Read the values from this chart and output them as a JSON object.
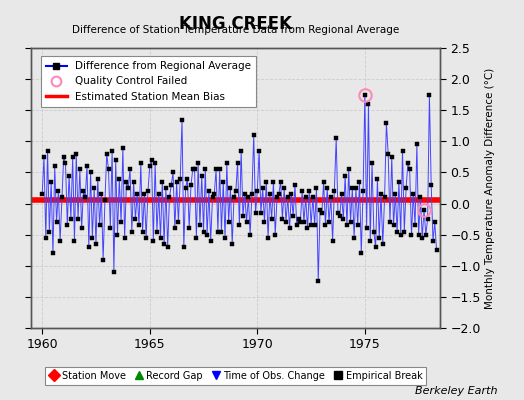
{
  "title": "KING CREEK",
  "subtitle": "Difference of Station Temperature Data from Regional Average",
  "ylabel": "Monthly Temperature Anomaly Difference (°C)",
  "credit": "Berkeley Earth",
  "xlim": [
    1959.5,
    1978.5
  ],
  "ylim": [
    -2.0,
    2.5
  ],
  "yticks": [
    -2.0,
    -1.5,
    -1.0,
    -0.5,
    0.0,
    0.5,
    1.0,
    1.5,
    2.0,
    2.5
  ],
  "xticks": [
    1960,
    1965,
    1970,
    1975
  ],
  "background_color": "#e8e8e8",
  "fig_background": "#e8e8e8",
  "line_color": "#4444ff",
  "line_color_light": "#aaaaff",
  "marker_color": "#000000",
  "bias_color": "#ff0000",
  "qc_color": "#ff88bb",
  "legend_line_color": "#0000ff",
  "legend_items": [
    {
      "label": "Difference from Regional Average"
    },
    {
      "label": "Quality Control Failed"
    },
    {
      "label": "Estimated Station Mean Bias"
    }
  ],
  "bottom_legend": [
    {
      "label": "Station Move",
      "color": "#ff0000",
      "marker": "D"
    },
    {
      "label": "Record Gap",
      "color": "#008800",
      "marker": "^"
    },
    {
      "label": "Time of Obs. Change",
      "color": "#0000ff",
      "marker": "v"
    },
    {
      "label": "Empirical Break",
      "color": "#000000",
      "marker": "s"
    }
  ],
  "data_x": [
    1960.0,
    1960.083,
    1960.167,
    1960.25,
    1960.333,
    1960.417,
    1960.5,
    1960.583,
    1960.667,
    1960.75,
    1960.833,
    1960.917,
    1961.0,
    1961.083,
    1961.167,
    1961.25,
    1961.333,
    1961.417,
    1961.5,
    1961.583,
    1961.667,
    1961.75,
    1961.833,
    1961.917,
    1962.0,
    1962.083,
    1962.167,
    1962.25,
    1962.333,
    1962.417,
    1962.5,
    1962.583,
    1962.667,
    1962.75,
    1962.833,
    1962.917,
    1963.0,
    1963.083,
    1963.167,
    1963.25,
    1963.333,
    1963.417,
    1963.5,
    1963.583,
    1963.667,
    1963.75,
    1963.833,
    1963.917,
    1964.0,
    1964.083,
    1964.167,
    1964.25,
    1964.333,
    1964.417,
    1964.5,
    1964.583,
    1964.667,
    1964.75,
    1964.833,
    1964.917,
    1965.0,
    1965.083,
    1965.167,
    1965.25,
    1965.333,
    1965.417,
    1965.5,
    1965.583,
    1965.667,
    1965.75,
    1965.833,
    1965.917,
    1966.0,
    1966.083,
    1966.167,
    1966.25,
    1966.333,
    1966.417,
    1966.5,
    1966.583,
    1966.667,
    1966.75,
    1966.833,
    1966.917,
    1967.0,
    1967.083,
    1967.167,
    1967.25,
    1967.333,
    1967.417,
    1967.5,
    1967.583,
    1967.667,
    1967.75,
    1967.833,
    1967.917,
    1968.0,
    1968.083,
    1968.167,
    1968.25,
    1968.333,
    1968.417,
    1968.5,
    1968.583,
    1968.667,
    1968.75,
    1968.833,
    1968.917,
    1969.0,
    1969.083,
    1969.167,
    1969.25,
    1969.333,
    1969.417,
    1969.5,
    1969.583,
    1969.667,
    1969.75,
    1969.833,
    1969.917,
    1970.0,
    1970.083,
    1970.167,
    1970.25,
    1970.333,
    1970.417,
    1970.5,
    1970.583,
    1970.667,
    1970.75,
    1970.833,
    1970.917,
    1971.0,
    1971.083,
    1971.167,
    1971.25,
    1971.333,
    1971.417,
    1971.5,
    1971.583,
    1971.667,
    1971.75,
    1971.833,
    1971.917,
    1972.0,
    1972.083,
    1972.167,
    1972.25,
    1972.333,
    1972.417,
    1972.5,
    1972.583,
    1972.667,
    1972.75,
    1972.833,
    1972.917,
    1973.0,
    1973.083,
    1973.167,
    1973.25,
    1973.333,
    1973.417,
    1973.5,
    1973.583,
    1973.667,
    1973.75,
    1973.833,
    1973.917,
    1974.0,
    1974.083,
    1974.167,
    1974.25,
    1974.333,
    1974.417,
    1974.5,
    1974.583,
    1974.667,
    1974.75,
    1974.833,
    1974.917,
    1975.0,
    1975.083,
    1975.167,
    1975.25,
    1975.333,
    1975.417,
    1975.5,
    1975.583,
    1975.667,
    1975.75,
    1975.833,
    1975.917,
    1976.0,
    1976.083,
    1976.167,
    1976.25,
    1976.333,
    1976.417,
    1976.5,
    1976.583,
    1976.667,
    1976.75,
    1976.833,
    1976.917,
    1977.0,
    1977.083,
    1977.167,
    1977.25,
    1977.333,
    1977.417,
    1977.5,
    1977.583,
    1977.667,
    1977.75,
    1977.833,
    1977.917,
    1978.0,
    1978.083,
    1978.167,
    1978.25,
    1978.333
  ],
  "data_y": [
    0.15,
    0.75,
    -0.55,
    0.85,
    -0.45,
    0.35,
    -0.8,
    0.6,
    -0.3,
    0.2,
    -0.6,
    0.1,
    0.75,
    0.65,
    -0.35,
    0.45,
    -0.25,
    0.75,
    -0.6,
    0.8,
    -0.25,
    0.55,
    -0.4,
    0.2,
    0.1,
    0.6,
    -0.7,
    0.5,
    -0.55,
    0.25,
    -0.65,
    0.4,
    -0.35,
    0.15,
    -0.9,
    0.05,
    0.8,
    0.55,
    -0.4,
    0.85,
    -1.1,
    0.7,
    -0.5,
    0.4,
    -0.3,
    0.9,
    -0.55,
    0.35,
    0.25,
    0.55,
    -0.45,
    0.35,
    -0.25,
    0.15,
    -0.35,
    0.65,
    -0.45,
    0.15,
    -0.55,
    0.2,
    0.6,
    0.7,
    -0.6,
    0.65,
    -0.45,
    0.15,
    -0.55,
    0.35,
    -0.65,
    0.25,
    -0.7,
    0.1,
    0.3,
    0.5,
    -0.4,
    0.35,
    -0.3,
    0.4,
    1.35,
    -0.7,
    0.25,
    0.4,
    -0.4,
    0.3,
    0.55,
    0.55,
    -0.55,
    0.65,
    -0.35,
    0.45,
    -0.45,
    0.55,
    -0.5,
    0.2,
    -0.6,
    0.1,
    0.15,
    0.55,
    -0.45,
    0.55,
    -0.45,
    0.35,
    -0.55,
    0.65,
    -0.3,
    0.25,
    -0.65,
    0.1,
    0.2,
    0.65,
    -0.35,
    0.85,
    -0.2,
    0.15,
    -0.3,
    0.1,
    -0.5,
    0.15,
    1.1,
    -0.15,
    0.2,
    0.85,
    -0.15,
    0.25,
    -0.3,
    0.35,
    -0.55,
    0.15,
    -0.25,
    0.35,
    -0.5,
    0.1,
    0.15,
    0.35,
    -0.25,
    0.25,
    -0.3,
    0.1,
    -0.4,
    0.15,
    -0.2,
    0.3,
    -0.35,
    -0.25,
    -0.3,
    0.2,
    -0.3,
    0.1,
    -0.4,
    0.2,
    -0.35,
    0.1,
    -0.35,
    0.25,
    -1.25,
    -0.1,
    -0.15,
    0.35,
    -0.35,
    0.25,
    -0.3,
    0.1,
    -0.6,
    0.2,
    1.05,
    -0.15,
    -0.2,
    0.15,
    -0.25,
    0.45,
    -0.35,
    0.55,
    -0.3,
    0.25,
    -0.55,
    0.25,
    -0.35,
    0.35,
    -0.8,
    0.2,
    1.75,
    -0.4,
    1.6,
    -0.6,
    0.65,
    -0.45,
    -0.7,
    0.4,
    -0.55,
    0.15,
    -0.65,
    0.1,
    1.3,
    0.8,
    -0.3,
    0.75,
    -0.35,
    0.15,
    -0.45,
    0.35,
    -0.5,
    0.85,
    -0.45,
    0.25,
    0.65,
    0.55,
    -0.5,
    0.15,
    -0.35,
    0.95,
    -0.5,
    0.1,
    -0.55,
    -0.1,
    -0.5,
    -0.25,
    1.75,
    0.3,
    -0.6,
    -0.3,
    -0.75
  ],
  "qc_failed_indices": [
    180,
    213
  ],
  "bias_y": 0.05
}
